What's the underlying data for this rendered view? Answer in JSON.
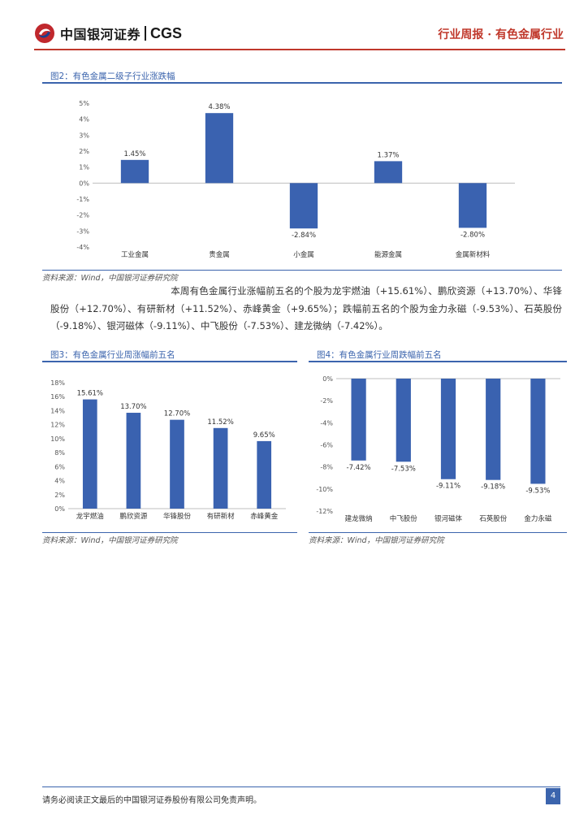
{
  "header": {
    "logo_cn": "中国银河证券",
    "logo_en": "CGS",
    "report_type": "行业周报 · 有色金属行业"
  },
  "figure2": {
    "title": "图2：有色金属二级子行业涨跌幅",
    "source": "资料来源：Wind，中国银河证券研究院",
    "chart_data": {
      "type": "bar",
      "categories": [
        "工业金属",
        "贵金属",
        "小金属",
        "能源金属",
        "金属新材料"
      ],
      "values": [
        1.45,
        4.38,
        -2.84,
        1.37,
        -2.8
      ],
      "data_labels": [
        "1.45%",
        "4.38%",
        "-2.84%",
        "1.37%",
        "-2.80%"
      ],
      "ylim": [
        -4,
        5
      ],
      "yticks": [
        "5%",
        "4%",
        "3%",
        "2%",
        "1%",
        "0%",
        "-1%",
        "-2%",
        "-3%",
        "-4%"
      ],
      "color": "#3a62b0",
      "grid": false
    }
  },
  "paragraph": "本周有色金属行业涨幅前五名的个股为龙宇燃油（+15.61%）、鹏欣资源（+13.70%）、华锋股份（+12.70%）、有研新材（+11.52%）、赤峰黄金（+9.65%）；跌幅前五名的个股为金力永磁（-9.53%）、石英股份（-9.18%）、银河磁体（-9.11%）、中飞股份（-7.53%）、建龙微纳（-7.42%）。",
  "figure3": {
    "title": "图3：有色金属行业周涨幅前五名",
    "source": "资料来源：Wind，中国银河证券研究院",
    "chart_data": {
      "type": "bar",
      "categories": [
        "龙宇燃油",
        "鹏欣资源",
        "华锋股份",
        "有研新材",
        "赤峰黄金"
      ],
      "values": [
        15.61,
        13.7,
        12.7,
        11.52,
        9.65
      ],
      "data_labels": [
        "15.61%",
        "13.70%",
        "12.70%",
        "11.52%",
        "9.65%"
      ],
      "ylim": [
        0,
        18
      ],
      "yticks": [
        "18%",
        "16%",
        "14%",
        "12%",
        "10%",
        "8%",
        "6%",
        "4%",
        "2%",
        "0%"
      ],
      "color": "#3a62b0",
      "grid": false
    }
  },
  "figure4": {
    "title": "图4：有色金属行业周跌幅前五名",
    "source": "资料来源：Wind，中国银河证券研究院",
    "chart_data": {
      "type": "bar",
      "categories": [
        "建龙微纳",
        "中飞股份",
        "银河磁体",
        "石英股份",
        "金力永磁"
      ],
      "values": [
        -7.42,
        -7.53,
        -9.11,
        -9.18,
        -9.53
      ],
      "data_labels": [
        "-7.42%",
        "-7.53%",
        "-9.11%",
        "-9.18%",
        "-9.53%"
      ],
      "ylim": [
        -12,
        0
      ],
      "yticks": [
        "0%",
        "-2%",
        "-4%",
        "-6%",
        "-8%",
        "-10%",
        "-12%"
      ],
      "color": "#3a62b0",
      "grid": false
    }
  },
  "footer": {
    "disclaimer": "请务必阅读正文最后的中国银河证券股份有限公司免责声明。",
    "page": "4"
  }
}
